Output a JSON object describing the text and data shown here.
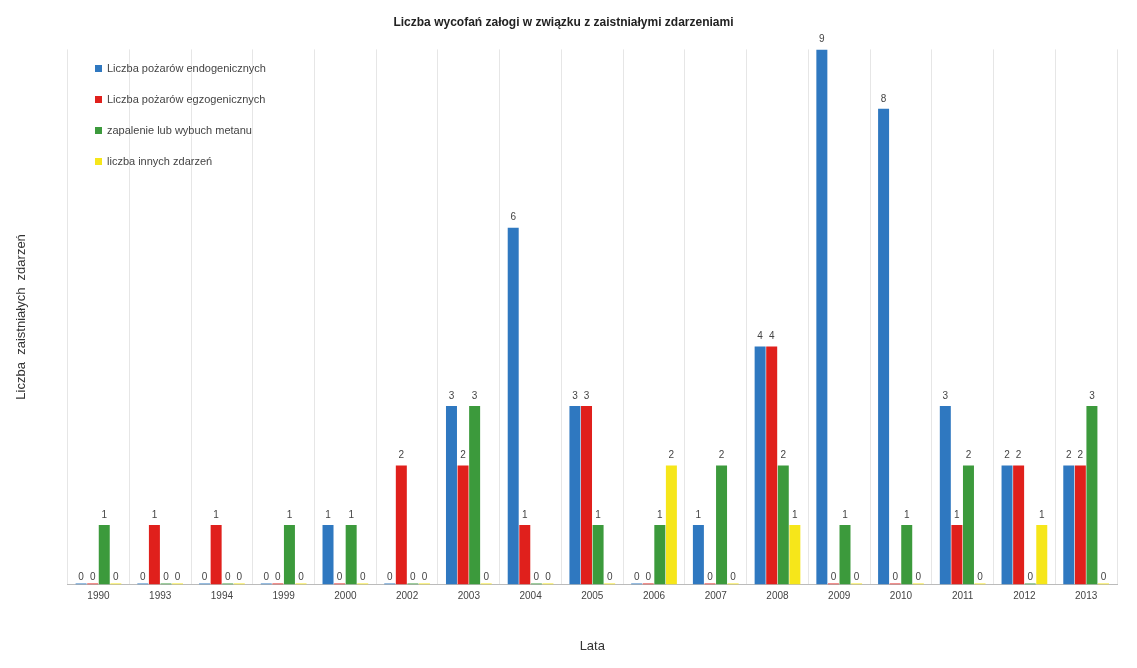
{
  "chart_data": {
    "type": "bar",
    "title": "Liczba wycofań załogi w związku z zaistniałymi zdarzeniami",
    "xlabel": "Lata",
    "ylabel": "Liczba  zaistniałych  zdarzeń",
    "categories": [
      "1990",
      "1993",
      "1994",
      "1999",
      "2000",
      "2002",
      "2003",
      "2004",
      "2005",
      "2006",
      "2007",
      "2008",
      "2009",
      "2010",
      "2011",
      "2012",
      "2013"
    ],
    "series": [
      {
        "name": "Liczba pożarów endogenicznych",
        "color": "#2f78c0",
        "values": [
          0,
          0,
          0,
          0,
          1,
          0,
          3,
          6,
          3,
          0,
          1,
          4,
          9,
          8,
          3,
          2,
          2
        ]
      },
      {
        "name": "Liczba pożarów egzogenicznych",
        "color": "#e0201c",
        "values": [
          0,
          1,
          1,
          0,
          0,
          2,
          2,
          1,
          3,
          0,
          0,
          4,
          0,
          0,
          1,
          2,
          2
        ]
      },
      {
        "name": "zapalenie lub wybuch metanu",
        "color": "#3c9a3c",
        "values": [
          1,
          0,
          0,
          1,
          1,
          0,
          3,
          0,
          1,
          1,
          2,
          2,
          1,
          1,
          2,
          0,
          3
        ]
      },
      {
        "name": "liczba innych zdarzeń",
        "color": "#f6e61a",
        "values": [
          0,
          0,
          0,
          0,
          0,
          0,
          0,
          0,
          0,
          2,
          0,
          1,
          0,
          0,
          0,
          1,
          0
        ]
      }
    ],
    "data_labels": true,
    "grid": "x",
    "legend": "top left",
    "tick_labels": "x"
  }
}
